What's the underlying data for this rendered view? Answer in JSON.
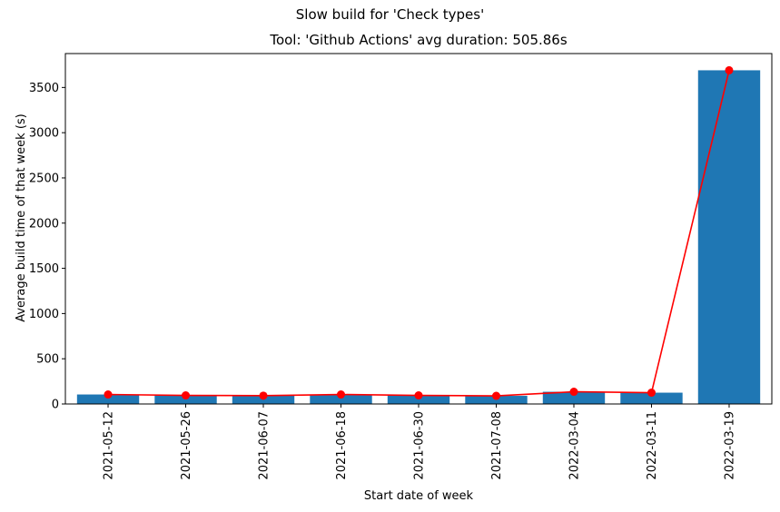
{
  "figure": {
    "suptitle": "Slow build for 'Check types'"
  },
  "chart_data": {
    "type": "bar",
    "title": "Tool: 'Github Actions' avg duration: 505.86s",
    "xlabel": "Start date of week",
    "ylabel": "Average build time of that week (s)",
    "categories": [
      "2021-05-12",
      "2021-05-26",
      "2021-06-07",
      "2021-06-18",
      "2021-06-30",
      "2021-07-08",
      "2022-03-04",
      "2022-03-11",
      "2022-03-19"
    ],
    "series": [
      {
        "values": [
          105,
          95,
          92,
          105,
          95,
          90,
          135,
          125,
          3690
        ],
        "color": "#1f77b4",
        "kind": "bar"
      },
      {
        "values": [
          105,
          95,
          92,
          105,
          95,
          90,
          135,
          125,
          3690
        ],
        "color": "#ff0000",
        "kind": "line"
      }
    ],
    "yticks": [
      0,
      500,
      1000,
      1500,
      2000,
      2500,
      3000,
      3500
    ],
    "ylim": [
      0,
      3875
    ],
    "grid": false,
    "legend": "none"
  }
}
